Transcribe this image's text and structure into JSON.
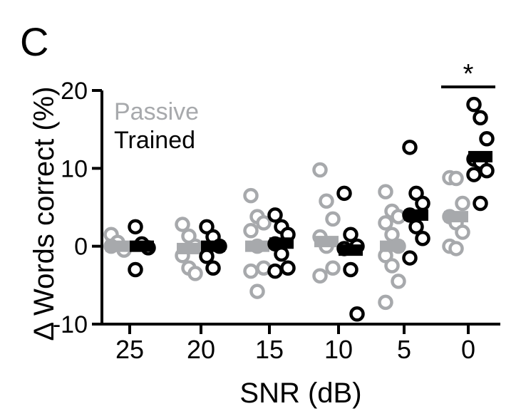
{
  "panel_label": "C",
  "chart_data": {
    "type": "scatter",
    "title": "",
    "xlabel": "SNR (dB)",
    "ylabel": "Δ Words correct (%)",
    "ylim": [
      -10,
      20
    ],
    "yticks": [
      -10,
      0,
      10,
      20
    ],
    "categories": [
      "25",
      "20",
      "15",
      "10",
      "5",
      "0"
    ],
    "legend": {
      "position": "top-left"
    },
    "significance": {
      "category": "0",
      "label": "*"
    },
    "series": [
      {
        "name": "Passive",
        "color": "#a7a9ac",
        "means": [
          0.0,
          -0.3,
          0.0,
          0.6,
          0.0,
          3.8
        ],
        "points": [
          [
            1.5,
            0.5,
            -0.5,
            0.0
          ],
          [
            2.8,
            1.3,
            0.0,
            -1.2,
            -2.8,
            -3.5
          ],
          [
            6.5,
            3.8,
            3.0,
            2.0,
            0.0,
            -2.8,
            -3.2,
            -5.8
          ],
          [
            9.8,
            5.8,
            3.5,
            1.2,
            0.0,
            -2.8,
            -3.8
          ],
          [
            7.0,
            4.5,
            3.8,
            3.0,
            1.5,
            0.0,
            -1.2,
            -2.5,
            -4.5,
            -7.2
          ],
          [
            8.8,
            8.7,
            5.5,
            3.8,
            3.0,
            1.8,
            0.0,
            -0.3
          ]
        ]
      },
      {
        "name": "Trained",
        "color": "#000000",
        "means": [
          0.0,
          0.0,
          0.4,
          -0.5,
          4.0,
          11.5
        ],
        "points": [
          [
            2.5,
            0.3,
            -0.2,
            -3.0
          ],
          [
            2.5,
            1.2,
            0.0,
            -1.3,
            -2.8
          ],
          [
            4.0,
            2.5,
            1.5,
            0.3,
            -1.0,
            -2.8,
            -3.2
          ],
          [
            6.8,
            1.5,
            0.0,
            -0.3,
            -3.0,
            -8.7
          ],
          [
            12.7,
            6.8,
            5.5,
            4.0,
            2.5,
            1.0,
            -1.5
          ],
          [
            18.2,
            16.5,
            13.8,
            11.2,
            10.8,
            9.7,
            9.2,
            5.5
          ]
        ]
      }
    ]
  }
}
